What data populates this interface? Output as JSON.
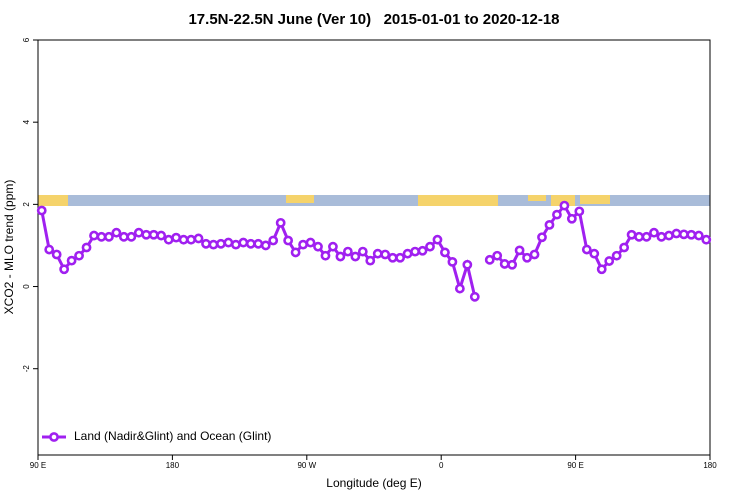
{
  "chart_data": {
    "type": "line",
    "title": "17.5N-22.5N June (Ver 10)   2015-01-01 to 2020-12-18",
    "x_label": "Longitude (deg E)",
    "y_label": "XCO2 - MLO trend (ppm)",
    "xlim": [
      90,
      540
    ],
    "ylim": [
      -4.1,
      6
    ],
    "xticks": [
      {
        "value": 90,
        "label": "90 E"
      },
      180,
      {
        "value": 270,
        "label": "90 W"
      },
      {
        "value": 360,
        "label": "0"
      },
      {
        "value": 450,
        "label": "90 E"
      },
      {
        "value": 540,
        "label": "180"
      }
    ],
    "yticks": [
      -2,
      0,
      2,
      4,
      6
    ],
    "legend": "bottomleft",
    "x": [
      92.5,
      97.5,
      102.5,
      107.5,
      112.5,
      117.5,
      122.5,
      127.5,
      132.5,
      137.5,
      142.5,
      147.5,
      152.5,
      157.5,
      162.5,
      167.5,
      172.5,
      177.5,
      182.5,
      187.5,
      192.5,
      197.5,
      202.5,
      207.5,
      212.5,
      217.5,
      222.5,
      227.5,
      232.5,
      237.5,
      242.5,
      247.5,
      252.5,
      257.5,
      262.5,
      267.5,
      272.5,
      277.5,
      282.5,
      287.5,
      292.5,
      297.5,
      302.5,
      307.5,
      312.5,
      317.5,
      322.5,
      327.5,
      332.5,
      337.5,
      342.5,
      347.5,
      352.5,
      357.5,
      362.5,
      367.5,
      372.5,
      377.5,
      382.5,
      387.5,
      392.5,
      397.5,
      402.5,
      407.5,
      412.5,
      417.5,
      422.5,
      427.5,
      432.5,
      437.5,
      442.5,
      447.5,
      452.5,
      457.5,
      462.5,
      467.5,
      472.5,
      477.5,
      482.5,
      487.5,
      492.5,
      497.5,
      502.5,
      507.5,
      512.5,
      517.5,
      522.5,
      527.5,
      532.5,
      537.5
    ],
    "series": [
      {
        "name": "Land (Nadir&Glint) and Ocean (Glint)",
        "color": "#a020f0",
        "values": [
          1.85,
          0.9,
          0.78,
          0.42,
          0.63,
          0.75,
          0.95,
          1.24,
          1.21,
          1.21,
          1.31,
          1.21,
          1.21,
          1.31,
          1.26,
          1.26,
          1.24,
          1.14,
          1.19,
          1.14,
          1.14,
          1.17,
          1.04,
          1.02,
          1.04,
          1.07,
          1.02,
          1.07,
          1.04,
          1.04,
          1.0,
          1.12,
          1.55,
          1.12,
          0.83,
          1.02,
          1.07,
          0.97,
          0.75,
          0.97,
          0.73,
          0.85,
          0.73,
          0.85,
          0.63,
          0.8,
          0.78,
          0.7,
          0.7,
          0.8,
          0.85,
          0.87,
          0.97,
          1.14,
          0.83,
          0.6,
          -0.05,
          0.53,
          -0.25,
          null,
          0.65,
          0.75,
          0.55,
          0.53,
          0.88,
          0.7,
          0.78,
          1.2,
          1.5,
          1.75,
          1.97,
          1.65,
          1.83,
          0.9,
          0.8,
          0.42,
          0.62,
          0.75,
          0.95,
          1.26,
          1.21,
          1.21,
          1.31,
          1.21,
          1.24,
          1.29,
          1.27,
          1.26,
          1.24,
          1.14
        ]
      }
    ]
  }
}
